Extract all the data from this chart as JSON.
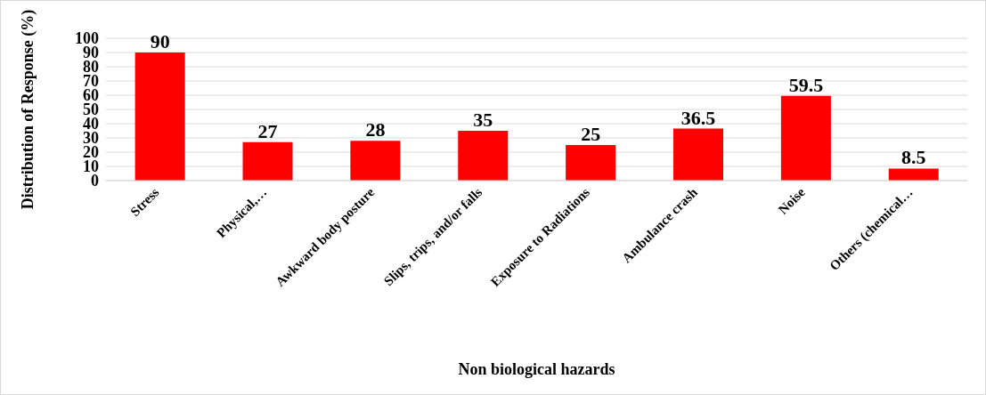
{
  "chart_data": {
    "type": "bar",
    "xlabel": "Non biological hazards",
    "ylabel": "Distribution of Response (%)",
    "categories": [
      "Stress",
      "Physical,…",
      "Awkward body posture",
      "Slips, trips, and/or falls",
      "Exposure to Radiations",
      "Ambulance crash",
      "Noise",
      "Others (chemical…"
    ],
    "values": [
      90,
      27,
      28,
      35,
      25,
      36.5,
      59.5,
      8.5
    ],
    "color": "#ff0000",
    "ylim": [
      0,
      100
    ],
    "yticks": [
      0,
      10,
      20,
      30,
      40,
      50,
      60,
      70,
      80,
      90,
      100
    ],
    "grid": "y",
    "data_labels": true,
    "legend": false
  }
}
